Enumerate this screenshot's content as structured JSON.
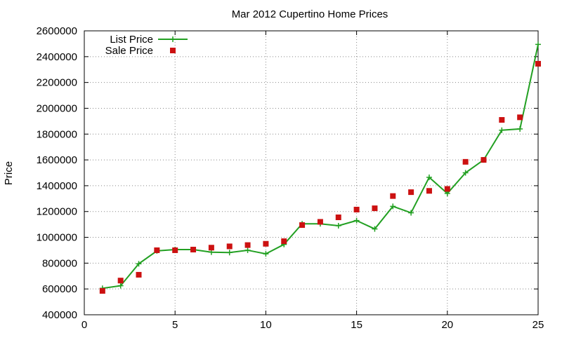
{
  "chart_data": {
    "type": "line",
    "title": "Mar 2012 Cupertino Home Prices",
    "xlabel": "",
    "ylabel": "Price",
    "xlim": [
      0,
      25
    ],
    "ylim": [
      400000,
      2600000
    ],
    "xticks": [
      0,
      5,
      10,
      15,
      20,
      25
    ],
    "yticks": [
      400000,
      600000,
      800000,
      1000000,
      1200000,
      1400000,
      1600000,
      1800000,
      2000000,
      2200000,
      2400000,
      2600000
    ],
    "grid": true,
    "legend_position": "top-left",
    "series": [
      {
        "name": "List Price",
        "style": "line-plus",
        "color": "#22a022",
        "points": [
          [
            1,
            605000
          ],
          [
            2,
            625000
          ],
          [
            3,
            795000
          ],
          [
            4,
            895000
          ],
          [
            5,
            905000
          ],
          [
            6,
            905000
          ],
          [
            7,
            885000
          ],
          [
            8,
            882000
          ],
          [
            9,
            900000
          ],
          [
            10,
            872000
          ],
          [
            11,
            945000
          ],
          [
            12,
            1105000
          ],
          [
            13,
            1105000
          ],
          [
            14,
            1090000
          ],
          [
            15,
            1130000
          ],
          [
            16,
            1065000
          ],
          [
            17,
            1240000
          ],
          [
            18,
            1190000
          ],
          [
            19,
            1465000
          ],
          [
            20,
            1340000
          ],
          [
            21,
            1500000
          ],
          [
            22,
            1600000
          ],
          [
            23,
            1830000
          ],
          [
            24,
            1840000
          ],
          [
            25,
            2495000
          ]
        ]
      },
      {
        "name": "Sale Price",
        "style": "square",
        "color": "#cc1111",
        "points": [
          [
            1,
            585000
          ],
          [
            2,
            665000
          ],
          [
            3,
            710000
          ],
          [
            4,
            900000
          ],
          [
            5,
            900000
          ],
          [
            6,
            905000
          ],
          [
            7,
            920000
          ],
          [
            8,
            930000
          ],
          [
            9,
            940000
          ],
          [
            10,
            950000
          ],
          [
            11,
            970000
          ],
          [
            12,
            1095000
          ],
          [
            13,
            1120000
          ],
          [
            14,
            1155000
          ],
          [
            15,
            1215000
          ],
          [
            16,
            1225000
          ],
          [
            17,
            1320000
          ],
          [
            18,
            1350000
          ],
          [
            19,
            1360000
          ],
          [
            20,
            1375000
          ],
          [
            21,
            1585000
          ],
          [
            22,
            1600000
          ],
          [
            23,
            1910000
          ],
          [
            24,
            1930000
          ],
          [
            25,
            2345000
          ]
        ]
      }
    ]
  }
}
